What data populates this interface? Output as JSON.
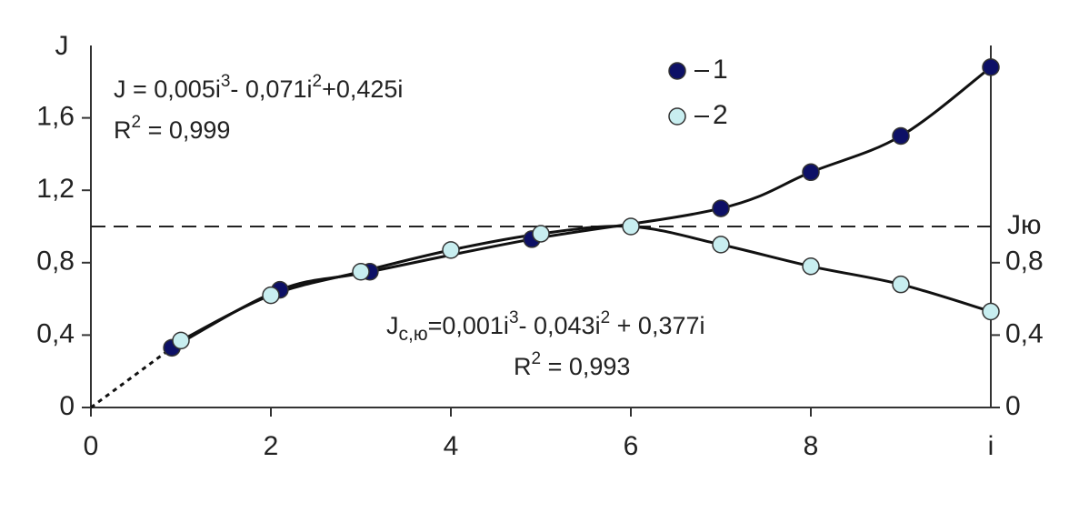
{
  "chart_data": {
    "type": "scatter",
    "xlabel": "i",
    "ylabel": "J",
    "xlim": [
      0,
      10
    ],
    "ylim": [
      0,
      2
    ],
    "y2lim": [
      0,
      2
    ],
    "xticks": [
      0,
      2,
      4,
      6,
      8
    ],
    "yticks": [
      0,
      {
        "value": 0.4,
        "label": "0,4"
      },
      {
        "value": 0.8,
        "label": "0,8"
      },
      {
        "value": 1.2,
        "label": "1,2"
      },
      {
        "value": 1.6,
        "label": "1,6"
      }
    ],
    "y2ticks": [
      0,
      {
        "value": 0.4,
        "label": "0,4"
      },
      {
        "value": 0.8,
        "label": "0,8"
      }
    ],
    "hlines": [
      {
        "value": 1.0,
        "label": "Jю"
      }
    ],
    "series": [
      {
        "name": "1",
        "color": "#0d1066",
        "x": [
          0.9,
          2.1,
          3.1,
          4.9,
          7,
          8,
          9,
          10
        ],
        "values": [
          0.33,
          0.65,
          0.75,
          0.93,
          1.1,
          1.3,
          1.5,
          1.88
        ]
      },
      {
        "name": "2",
        "color": "#c8eef0",
        "x": [
          1,
          2,
          3,
          4,
          5,
          6,
          7,
          8,
          9,
          10
        ],
        "values": [
          0.37,
          0.62,
          0.75,
          0.87,
          0.96,
          1.0,
          0.9,
          0.78,
          0.68,
          0.53
        ]
      }
    ],
    "annotations": [
      {
        "lines": [
          [
            {
              "text": "J = 0,005i"
            },
            {
              "text": "3",
              "style": "sup"
            },
            {
              "text": "- 0,071i"
            },
            {
              "text": "2",
              "style": "sup"
            },
            {
              "text": "+0,425i"
            }
          ],
          [
            {
              "text": "R"
            },
            {
              "text": "2",
              "style": "sup"
            },
            {
              "text": " = 0,999"
            }
          ]
        ]
      },
      {
        "lines": [
          [
            {
              "text": "J"
            },
            {
              "text": "с,ю",
              "style": "sub"
            },
            {
              "text": "=0,001i"
            },
            {
              "text": "3",
              "style": "sup"
            },
            {
              "text": "- 0,043i"
            },
            {
              "text": "2",
              "style": "sup"
            },
            {
              "text": " + 0,377i"
            }
          ],
          [
            {
              "text": "R"
            },
            {
              "text": "2",
              "style": "sup"
            },
            {
              "text": " = 0,993"
            }
          ]
        ]
      }
    ]
  }
}
